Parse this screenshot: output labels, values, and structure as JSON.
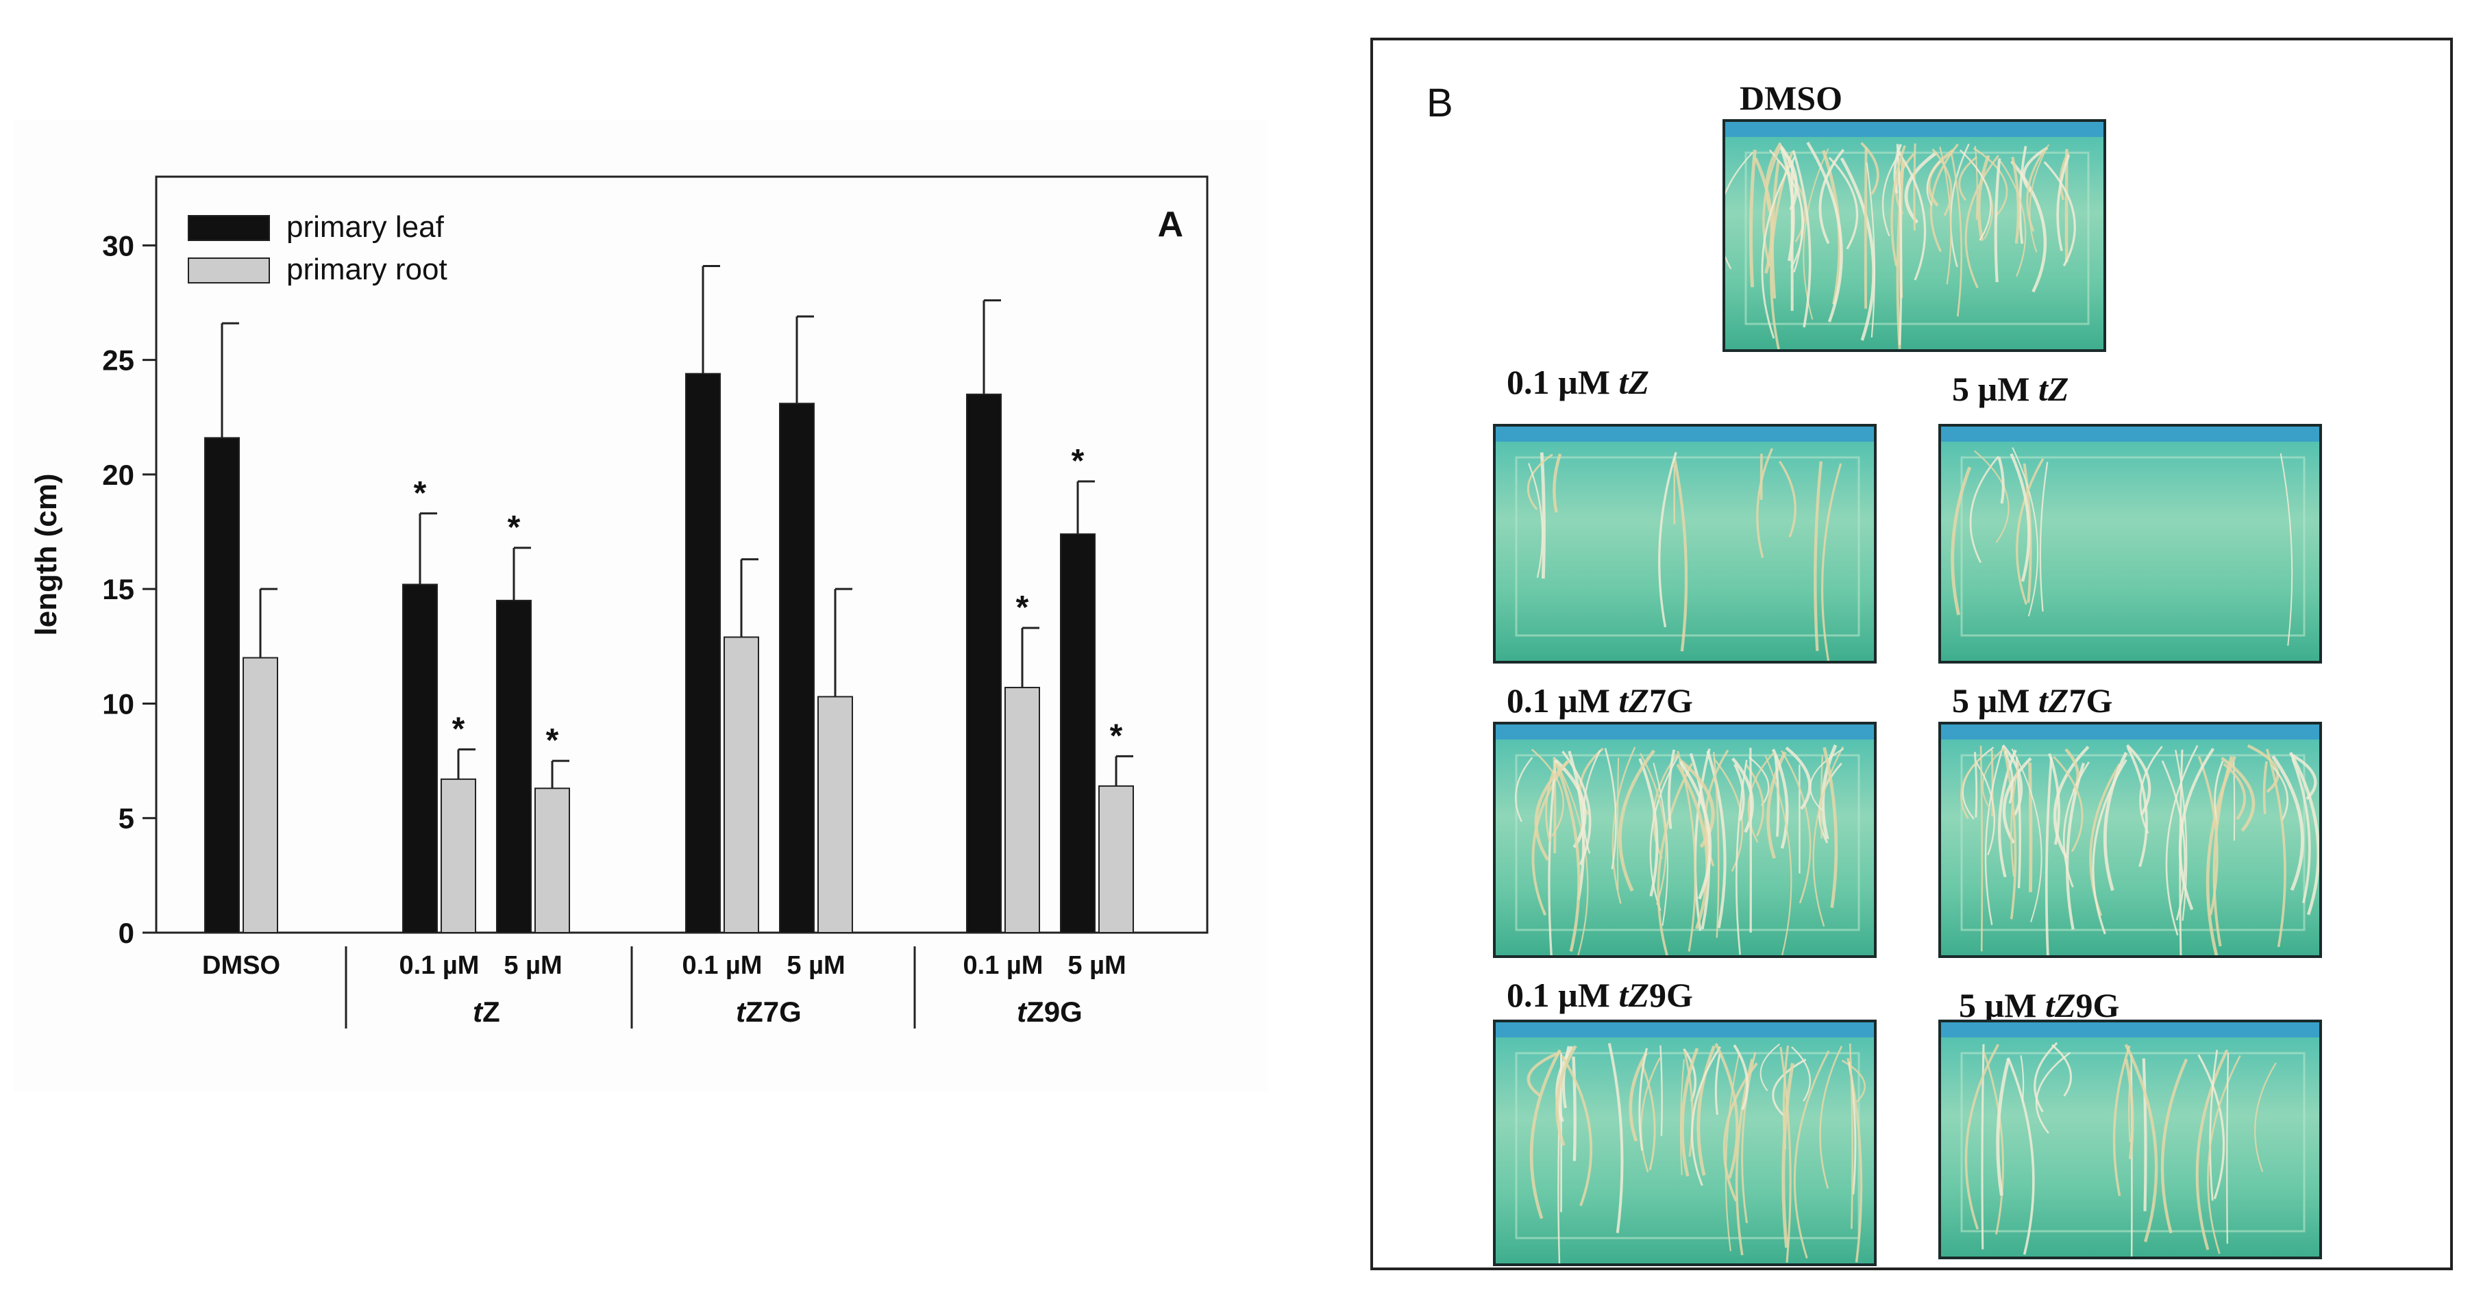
{
  "chart_data": {
    "type": "bar",
    "panel_letter": "A",
    "ylabel": "length (cm)",
    "ylim": [
      0,
      33
    ],
    "yticks": [
      0,
      5,
      10,
      15,
      20,
      25,
      30
    ],
    "legend_position": "top-left",
    "groups": [
      {
        "name": "",
        "categories": [
          "DMSO"
        ]
      },
      {
        "name": "tZ",
        "categories": [
          "0.1 µM",
          "5 µM"
        ]
      },
      {
        "name": "tZ7G",
        "categories": [
          "0.1 µM",
          "5 µM"
        ]
      },
      {
        "name": "tZ9G",
        "categories": [
          "0.1 µM",
          "5 µM"
        ]
      }
    ],
    "series": [
      {
        "name": "primary leaf",
        "color": "#111111",
        "values": [
          21.6,
          15.2,
          14.5,
          24.4,
          23.1,
          23.5,
          17.4
        ],
        "errors": [
          5.0,
          3.1,
          2.3,
          4.7,
          3.8,
          4.1,
          2.3
        ],
        "significant": [
          false,
          true,
          true,
          false,
          false,
          false,
          true
        ]
      },
      {
        "name": "primary root",
        "color": "#cccccc",
        "values": [
          12.0,
          6.7,
          6.3,
          12.9,
          10.3,
          10.7,
          6.4
        ],
        "errors": [
          3.0,
          1.3,
          1.2,
          3.4,
          4.7,
          2.6,
          1.3
        ],
        "significant": [
          false,
          true,
          true,
          false,
          false,
          true,
          true
        ]
      }
    ],
    "significance_marker": "*"
  },
  "panel_b": {
    "letter": "B",
    "photos": [
      {
        "id": "dmso",
        "label_prefix": "DMSO",
        "label_italic": "",
        "label_suffix": ""
      },
      {
        "id": "tz-01",
        "label_prefix": "0.1 µM ",
        "label_italic": "tZ",
        "label_suffix": ""
      },
      {
        "id": "tz-5",
        "label_prefix": "5 µM ",
        "label_italic": "tZ",
        "label_suffix": ""
      },
      {
        "id": "tz7g-01",
        "label_prefix": "0.1 µM ",
        "label_italic": "tZ",
        "label_suffix": "7G"
      },
      {
        "id": "tz7g-5",
        "label_prefix": "5 µM ",
        "label_italic": "tZ",
        "label_suffix": "7G"
      },
      {
        "id": "tz9g-01",
        "label_prefix": "0.1 µM ",
        "label_italic": "tZ",
        "label_suffix": "9G"
      },
      {
        "id": "tz9g-5",
        "label_prefix": "5 µM ",
        "label_italic": "tZ",
        "label_suffix": "9G"
      }
    ]
  }
}
